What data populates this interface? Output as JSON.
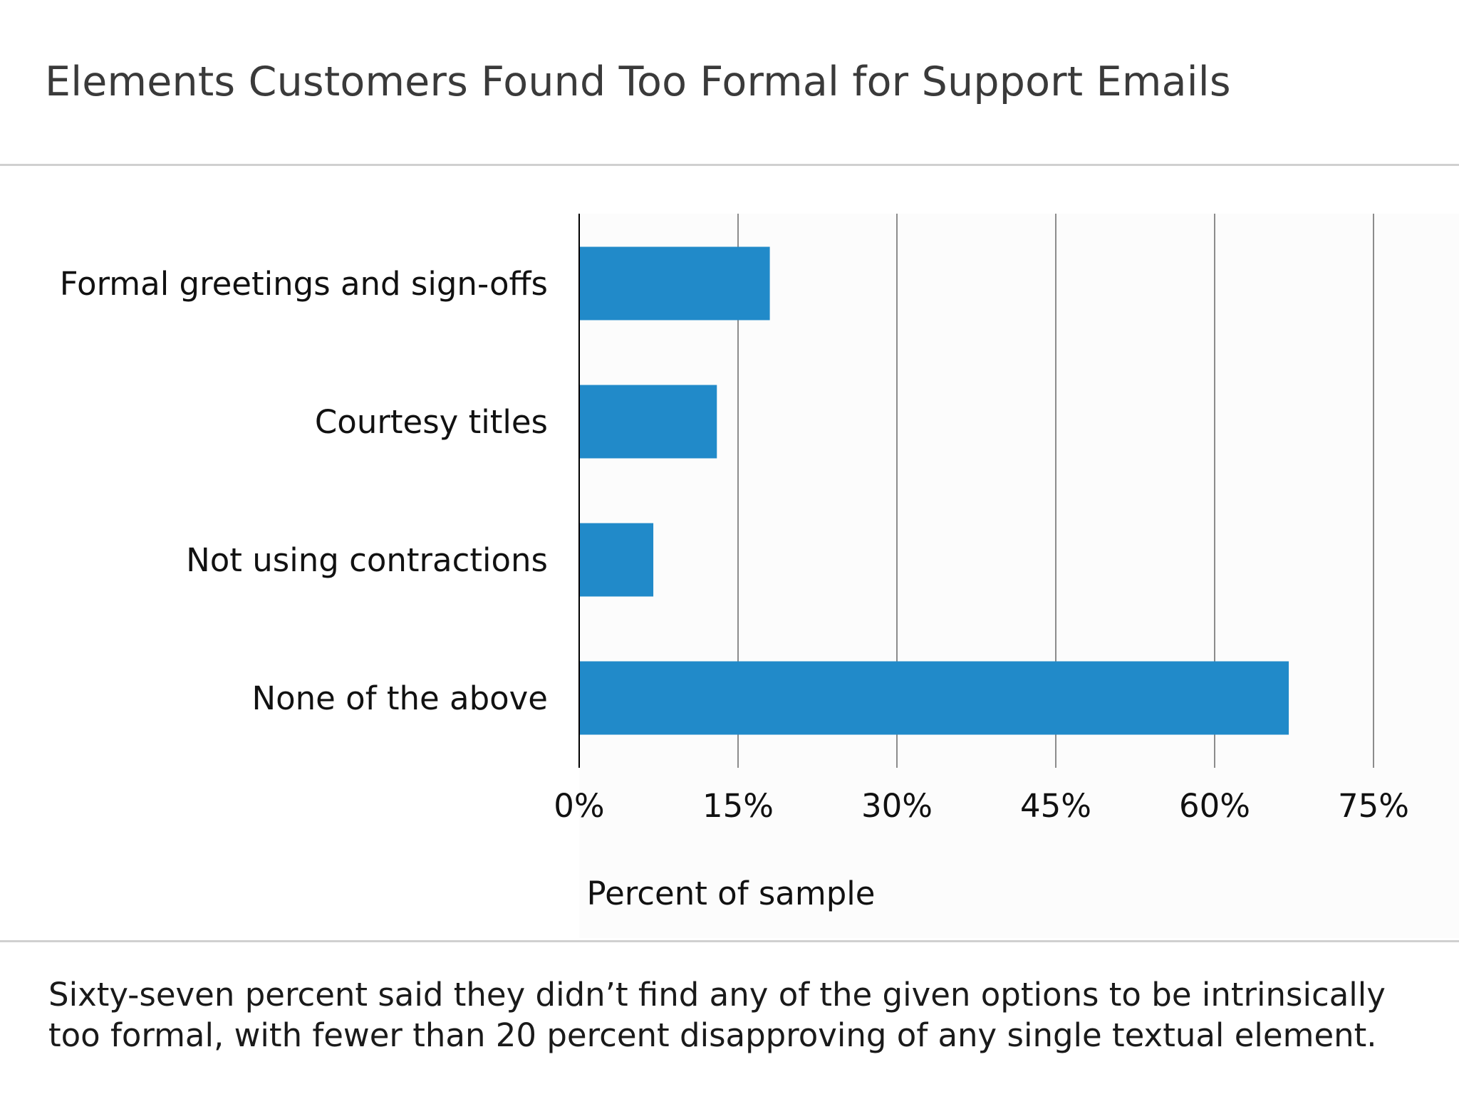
{
  "title": "Elements Customers Found Too Formal for Support Emails",
  "caption_lines": [
    "Sixty-seven percent said they didn’t find any of the given options to be intrinsically",
    "too formal, with fewer than 20 percent disapproving of any single textual element."
  ],
  "colors": {
    "bar": "#218AC9",
    "grid": "#8c8c8c",
    "axis": "#000000",
    "plot_bg": "#fcfcfc"
  },
  "chart_data": {
    "type": "bar",
    "orientation": "horizontal",
    "categories": [
      "Formal greetings and sign-offs",
      "Courtesy titles",
      "Not using contractions",
      "None of the above"
    ],
    "values": [
      18,
      13,
      7,
      67
    ],
    "xlabel": "Percent of sample",
    "ylabel": "",
    "xlim": [
      0,
      75
    ],
    "xticks": [
      0,
      15,
      30,
      45,
      60,
      75
    ],
    "xtick_labels": [
      "0%",
      "15%",
      "30%",
      "45%",
      "60%",
      "75%"
    ],
    "grid": "vertical"
  }
}
